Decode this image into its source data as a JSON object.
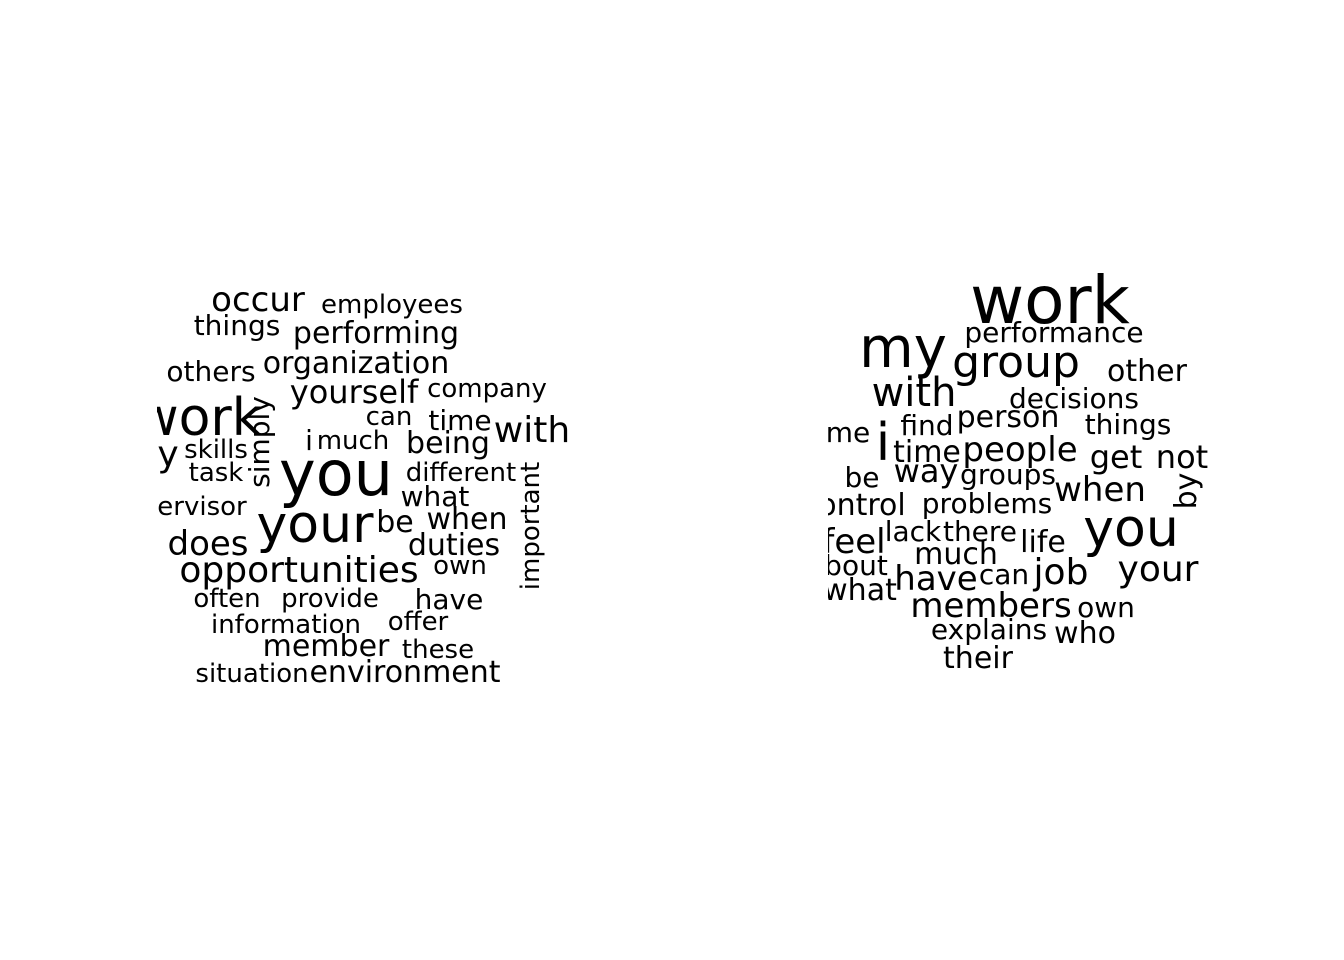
{
  "clouds": [
    {
      "id": "left",
      "words": [
        "occur",
        "employees",
        "things",
        "performing",
        "organization",
        "others",
        "yourself",
        "company",
        "work",
        "simply",
        "can",
        "time",
        "with",
        "y",
        "skills",
        "i",
        "much",
        "being",
        "you",
        "task",
        "different",
        "what",
        "ervisor",
        "important",
        "be",
        "when",
        "your",
        "does",
        "duties",
        "opportunities",
        "own",
        "often",
        "provide",
        "have",
        "information",
        "offer",
        "member",
        "these",
        "situation",
        "environment"
      ]
    },
    {
      "id": "right",
      "words": [
        "work",
        "performance",
        "my",
        "group",
        "other",
        "with",
        "decisions",
        "me",
        "i",
        "find",
        "person",
        "things",
        "time",
        "people",
        "get",
        "not",
        "be",
        "way",
        "groups",
        "when",
        "by",
        "ontrol",
        "problems",
        "you",
        "feel",
        "lack",
        "there",
        "life",
        "bout",
        "much",
        "can",
        "job",
        "your",
        "have",
        "what",
        "members",
        "own",
        "explains",
        "who",
        "their"
      ]
    }
  ],
  "colors": {
    "background": "#ffffff",
    "text": "#000000"
  }
}
